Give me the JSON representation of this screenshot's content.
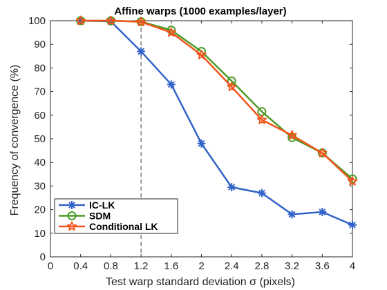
{
  "chart_data": {
    "type": "line",
    "title": "Affine warps (1000 examples/layer)",
    "xlabel": "Test warp standard deviation σ (pixels)",
    "ylabel": "Frequency of convergence (%)",
    "xlim": [
      0,
      4
    ],
    "ylim": [
      0,
      100
    ],
    "xticks": [
      "0",
      "0.4",
      "0.8",
      "1.2",
      "1.6",
      "2",
      "2.4",
      "2.8",
      "3.2",
      "3.6",
      "4"
    ],
    "yticks": [
      "0",
      "10",
      "20",
      "30",
      "40",
      "50",
      "60",
      "70",
      "80",
      "90",
      "100"
    ],
    "grid": false,
    "legend_position": "bottom-left",
    "vertical_reference_line": {
      "x": 1.2,
      "style": "dashed",
      "color": "#404040"
    },
    "x": [
      0.4,
      0.8,
      1.2,
      1.6,
      2.0,
      2.4,
      2.8,
      3.2,
      3.6,
      4.0
    ],
    "series": [
      {
        "name": "IC-LK",
        "color": "#3162C8",
        "marker": "asterisk",
        "values": [
          100,
          99.7,
          87,
          73,
          48,
          29.5,
          27,
          18,
          19,
          13.5
        ]
      },
      {
        "name": "SDM",
        "color": "#4B9A26",
        "marker": "circle",
        "values": [
          100,
          100,
          99.6,
          96,
          87,
          74.5,
          61.5,
          50.5,
          44,
          33
        ]
      },
      {
        "name": "Conditional LK",
        "color": "#F2541B",
        "marker": "star",
        "values": [
          100,
          100,
          99.5,
          95,
          85.5,
          72,
          58,
          51.5,
          44,
          32
        ]
      }
    ]
  }
}
